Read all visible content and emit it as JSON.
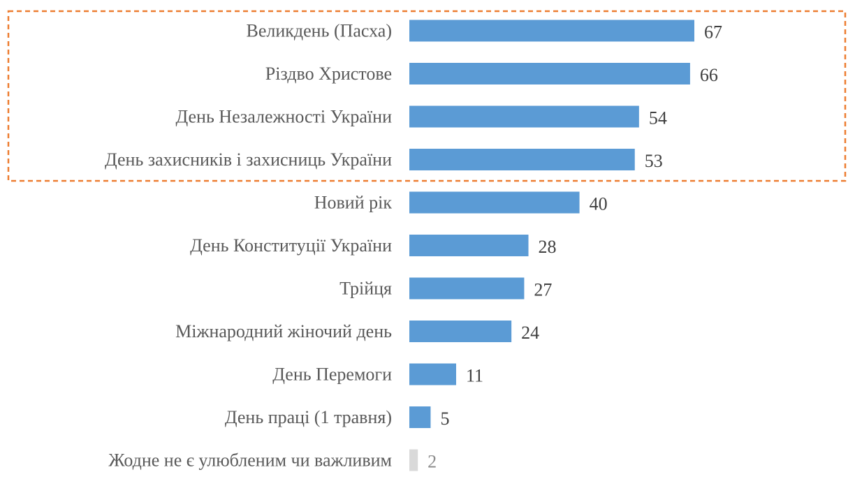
{
  "chart_data": {
    "type": "bar",
    "orientation": "horizontal",
    "categories": [
      "Великдень (Пасха)",
      "Різдво Христове",
      "День Незалежності України",
      "День захисників і захисниць України",
      "Новий рік",
      "День Конституції України",
      "Трійця",
      "Міжнародний жіночий день",
      "День Перемоги",
      "День праці (1 травня)",
      "Жодне не є улюбленим чи важливим"
    ],
    "values": [
      67,
      66,
      54,
      53,
      40,
      28,
      27,
      24,
      11,
      5,
      2
    ],
    "value_labels": [
      "67",
      "66",
      "54",
      "53",
      "40",
      "28",
      "27",
      "24",
      "11",
      "5",
      "2"
    ],
    "colors": {
      "bar": "#5b9bd5",
      "bar_muted": "#d9d9d9",
      "highlight_box": "#ed7d31",
      "category_text": "#595959",
      "value_text": "#404040",
      "value_text_muted": "#8c8c8c"
    },
    "highlighted_categories": [
      0,
      1,
      2,
      3
    ],
    "muted_categories": [
      10
    ],
    "grid": false,
    "legend": "none",
    "xlim": [
      0,
      100
    ]
  }
}
